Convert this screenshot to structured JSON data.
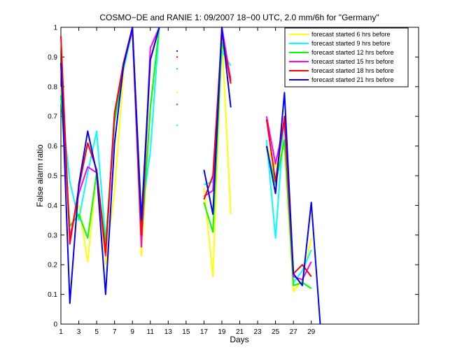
{
  "chart_data": {
    "type": "line",
    "title": "COSMO−DE and RANIE 1: 09/2007 18−00 UTC, 2.0 mm/6h for \"Germany\"",
    "xlabel": "Days",
    "ylabel": "False alarm ratio",
    "xlim": [
      1,
      41
    ],
    "ylim": [
      0,
      1
    ],
    "xticks": [
      1,
      3,
      5,
      7,
      9,
      11,
      13,
      15,
      17,
      19,
      21,
      23,
      25,
      27,
      29
    ],
    "xtick_labels": [
      "1",
      "3",
      "5",
      "7",
      "9",
      "11",
      "13",
      "15",
      "17",
      "19",
      "21",
      "23",
      "25",
      "27",
      "29"
    ],
    "yticks": [
      0,
      0.1,
      0.2,
      0.3,
      0.4,
      0.5,
      0.6,
      0.7,
      0.8,
      0.9,
      1
    ],
    "ytick_labels": [
      "0",
      "0.1",
      "0.2",
      "0.3",
      "0.4",
      "0.5",
      "0.6",
      "0.7",
      "0.8",
      "0.9",
      "1"
    ],
    "grid": false,
    "legend_position": "top-right",
    "x": [
      1,
      2,
      3,
      4,
      5,
      6,
      7,
      8,
      9,
      10,
      11,
      12,
      13,
      14,
      15,
      16,
      17,
      18,
      19,
      20,
      21,
      22,
      23,
      24,
      25,
      26,
      27,
      28,
      29,
      30,
      31
    ],
    "series": [
      {
        "name": "forecast started 6 hrs before",
        "color": "#ffff00",
        "values": [
          0.8,
          0.3,
          0.4,
          0.21,
          0.52,
          0.2,
          0.45,
          0.85,
          0.99,
          0.23,
          0.72,
          1.0,
          null,
          0.78,
          null,
          null,
          0.46,
          0.16,
          0.97,
          0.37,
          null,
          null,
          null,
          0.6,
          0.53,
          0.6,
          0.11,
          0.15,
          0.29,
          null,
          null
        ]
      },
      {
        "name": "forecast started 9 hrs before",
        "color": "#00ffff",
        "values": [
          0.76,
          0.48,
          0.35,
          0.51,
          0.65,
          0.28,
          0.68,
          0.86,
          0.99,
          0.37,
          0.58,
          1.0,
          null,
          0.67,
          null,
          null,
          0.47,
          0.48,
          0.92,
          0.87,
          null,
          null,
          null,
          0.62,
          0.29,
          0.7,
          0.14,
          0.18,
          0.25,
          null,
          null
        ]
      },
      {
        "name": "forecast started 12 hrs before",
        "color": "#00ff00",
        "values": [
          0.77,
          0.33,
          0.37,
          0.29,
          0.51,
          0.27,
          0.68,
          0.88,
          0.99,
          0.27,
          0.73,
          1.0,
          null,
          0.86,
          null,
          null,
          0.41,
          0.31,
          0.95,
          0.83,
          null,
          null,
          null,
          0.6,
          0.47,
          0.62,
          0.13,
          0.14,
          0.12,
          null,
          null
        ]
      },
      {
        "name": "forecast started 15 hrs before",
        "color": "#ff00ff",
        "values": [
          0.88,
          0.29,
          0.44,
          0.53,
          0.51,
          0.23,
          0.71,
          0.88,
          0.99,
          0.26,
          0.93,
          1.0,
          null,
          0.74,
          null,
          null,
          0.43,
          0.45,
          1.0,
          0.82,
          null,
          null,
          null,
          0.7,
          0.54,
          0.68,
          0.16,
          0.15,
          0.21,
          null,
          null
        ]
      },
      {
        "name": "forecast started 18 hrs before",
        "color": "#ff0000",
        "values": [
          0.97,
          0.27,
          0.46,
          0.61,
          0.52,
          0.24,
          0.71,
          0.88,
          1.0,
          0.3,
          0.89,
          1.0,
          null,
          0.9,
          null,
          null,
          0.42,
          0.5,
          0.98,
          0.81,
          null,
          null,
          null,
          0.69,
          0.48,
          0.7,
          0.17,
          0.2,
          0.16,
          null,
          null
        ]
      },
      {
        "name": "forecast started 21 hrs before",
        "color": "#0000ff",
        "values": [
          0.88,
          0.07,
          0.47,
          0.65,
          0.51,
          0.1,
          0.61,
          0.87,
          1.0,
          0.35,
          0.89,
          1.0,
          null,
          0.92,
          null,
          null,
          0.52,
          0.37,
          1.0,
          0.73,
          null,
          null,
          null,
          0.6,
          0.44,
          0.78,
          0.17,
          0.13,
          0.41,
          0.0,
          null
        ]
      }
    ]
  }
}
